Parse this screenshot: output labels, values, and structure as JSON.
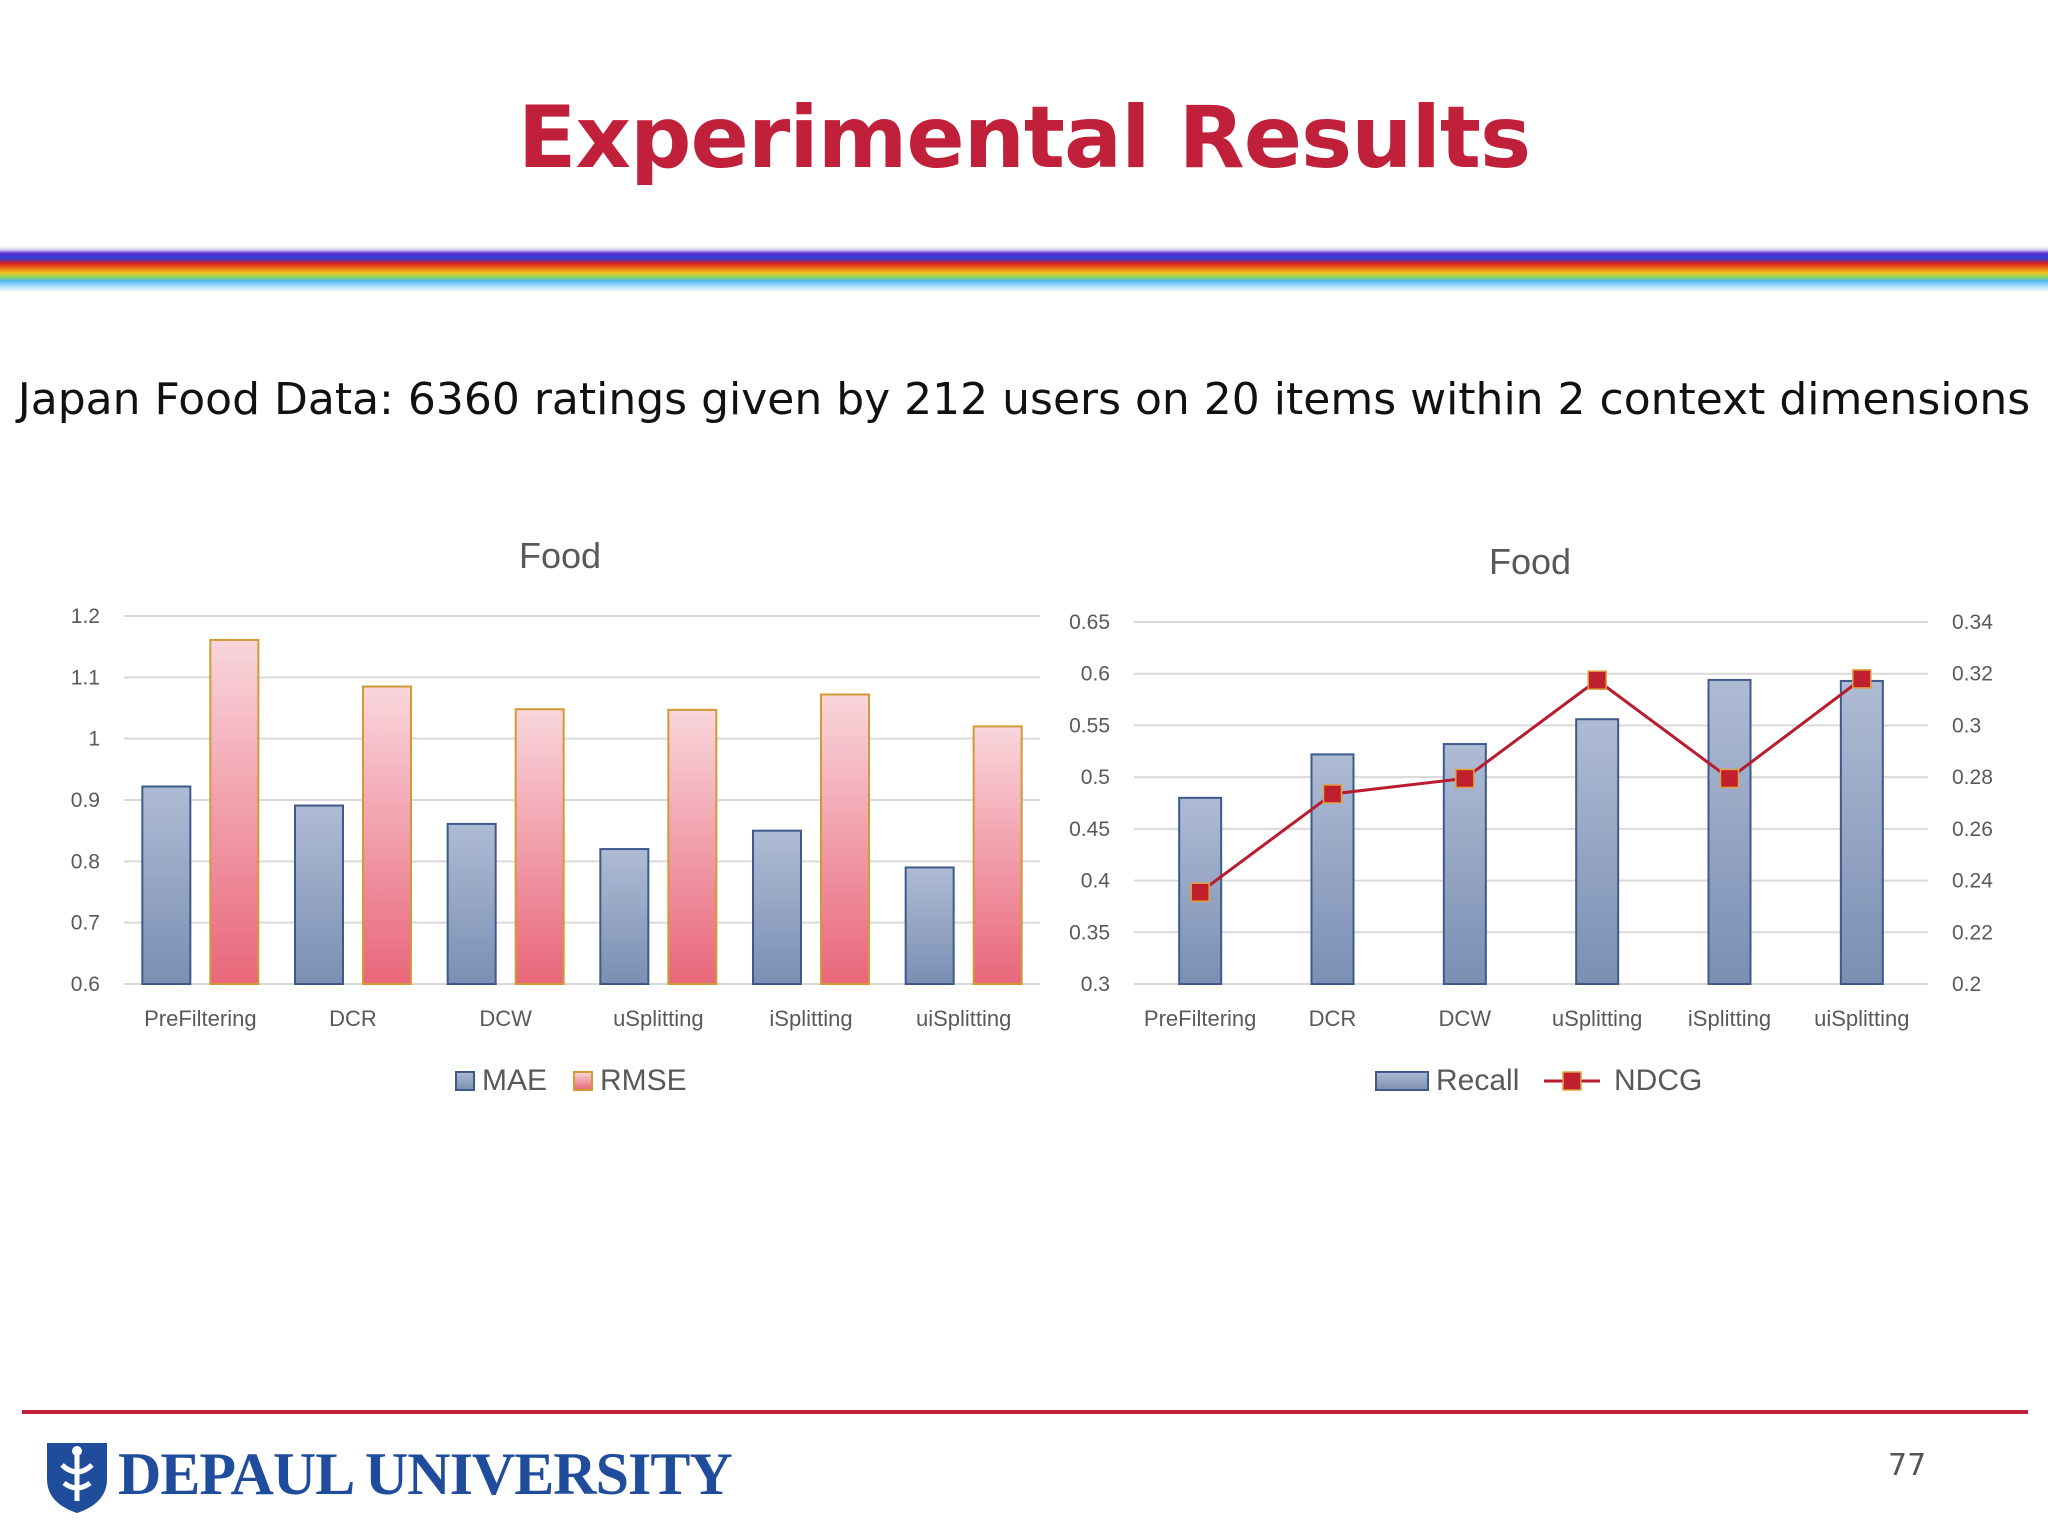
{
  "slide": {
    "title": "Experimental Results",
    "subtitle": "Japan Food Data: 6360 ratings given by 212 users on 20 items within 2 context dimensions",
    "page_number": "77",
    "logo_text": "DEPAUL UNIVERSITY",
    "colors": {
      "title": "#c0203a",
      "footer_line": "#c0203a",
      "logo": "#1f4d9c"
    }
  },
  "chart_data": [
    {
      "type": "bar",
      "title": "Food",
      "categories": [
        "PreFiltering",
        "DCR",
        "DCW",
        "uSplitting",
        "iSplitting",
        "uiSplitting"
      ],
      "series": [
        {
          "name": "MAE",
          "values": [
            0.922,
            0.891,
            0.861,
            0.82,
            0.85,
            0.79
          ],
          "color": "#8fa2c4"
        },
        {
          "name": "RMSE",
          "values": [
            1.161,
            1.085,
            1.048,
            1.047,
            1.072,
            1.02
          ],
          "color": "#ee7a88"
        }
      ],
      "ylim": [
        0.6,
        1.2
      ],
      "yticks": [
        "0.6",
        "0.7",
        "0.8",
        "0.9",
        "1",
        "1.1",
        "1.2"
      ],
      "grid": true,
      "legend": "bottom"
    },
    {
      "type": "bar",
      "title": "Food",
      "categories": [
        "PreFiltering",
        "DCR",
        "DCW",
        "uSplitting",
        "iSplitting",
        "uiSplitting"
      ],
      "series": [
        {
          "name": "Recall",
          "type": "bar",
          "axis": "left",
          "values": [
            0.48,
            0.522,
            0.532,
            0.556,
            0.594,
            0.593
          ],
          "color": "#8fa2c4"
        },
        {
          "name": "NDCG",
          "type": "line",
          "axis": "right",
          "values": [
            0.2355,
            0.2735,
            0.2795,
            0.3175,
            0.2795,
            0.318
          ],
          "color": "#b81c2e"
        }
      ],
      "ylim": [
        0.3,
        0.65
      ],
      "yticks": [
        "0.3",
        "0.35",
        "0.4",
        "0.45",
        "0.5",
        "0.55",
        "0.6",
        "0.65"
      ],
      "y2lim": [
        0.2,
        0.34
      ],
      "y2ticks": [
        "0.2",
        "0.22",
        "0.24",
        "0.26",
        "0.28",
        "0.3",
        "0.32",
        "0.34"
      ],
      "grid": true,
      "legend": "bottom"
    }
  ]
}
